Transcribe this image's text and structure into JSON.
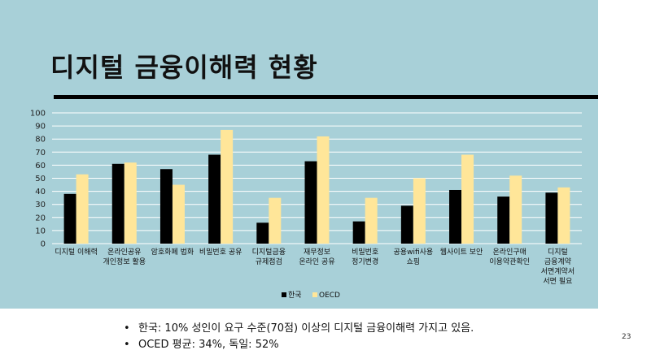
{
  "slide": {
    "title": "디지털 금융이해력 현황",
    "page_number": "23",
    "bullets": [
      "한국: 10% 성인이 요구 수준(70점) 이상의 디지털 금융이해력 가지고 있음.",
      "OCED 평균: 34%, 독일: 52%"
    ]
  },
  "chart_data": {
    "type": "bar",
    "categories": [
      [
        "디지털 이해력"
      ],
      [
        "온라인공유",
        "개인정보 활용"
      ],
      [
        "암호화폐 법화"
      ],
      [
        "비밀번호 공유"
      ],
      [
        "디지털금융",
        "규제점검"
      ],
      [
        "재무정보",
        "온라인 공유"
      ],
      [
        "비밀번호",
        "정기변경"
      ],
      [
        "공용wifi사용",
        "쇼핑"
      ],
      [
        "웹사이트 보안"
      ],
      [
        "온라인구매",
        "이용약관확인"
      ],
      [
        "디지털",
        "금융계약",
        "서면계약서",
        "서면 필요"
      ]
    ],
    "series": [
      {
        "name": "한국",
        "color": "#000000",
        "values": [
          38,
          61,
          57,
          68,
          16,
          63,
          17,
          29,
          41,
          36,
          39
        ]
      },
      {
        "name": "OECD",
        "color": "#ffe699",
        "values": [
          53,
          62,
          45,
          87,
          35,
          82,
          35,
          50,
          68,
          52,
          43
        ]
      }
    ],
    "ylim": [
      0,
      100
    ],
    "yticks": [
      0,
      10,
      20,
      30,
      40,
      50,
      60,
      70,
      80,
      90,
      100
    ],
    "grid": true,
    "legend": "bottom"
  }
}
